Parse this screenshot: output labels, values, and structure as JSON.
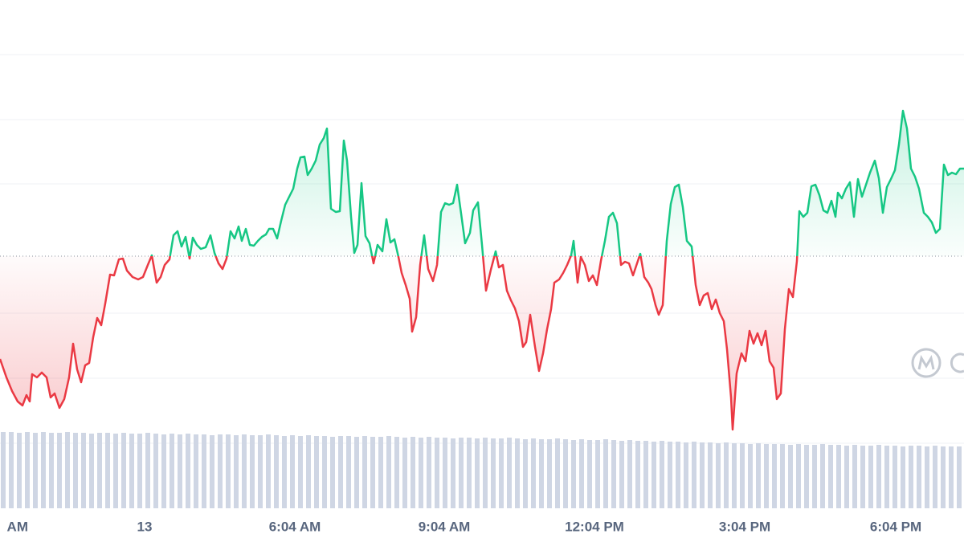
{
  "chart_data": {
    "type": "line",
    "xlim": [
      0,
      1200
    ],
    "ylim": [
      0,
      675
    ],
    "grid": true,
    "yticks": [
      123,
      204,
      285,
      446,
      526,
      607
    ],
    "xticks": [
      {
        "value": -7,
        "label": "AM"
      },
      {
        "value": 180,
        "label": "13"
      },
      {
        "value": 367,
        "label": "6:04 AM"
      },
      {
        "value": 553,
        "label": "9:04 AM"
      },
      {
        "value": 740,
        "label": "12:04 PM"
      },
      {
        "value": 927,
        "label": "3:04 PM"
      },
      {
        "value": 1115,
        "label": "6:04 PM"
      }
    ],
    "baseline": 356,
    "up_color": "#16c784",
    "down_color": "#ea3943",
    "x": [
      0,
      8,
      15,
      22,
      28,
      33,
      37,
      40,
      46,
      52,
      58,
      63,
      68,
      74,
      80,
      86,
      91,
      96,
      101,
      106,
      111,
      116,
      121,
      126,
      131,
      137,
      142,
      148,
      153,
      158,
      165,
      172,
      178,
      184,
      189,
      195,
      200,
      205,
      211,
      216,
      221,
      226,
      231,
      236,
      240,
      245,
      250,
      256,
      262,
      267,
      272,
      277,
      282,
      287,
      292,
      297,
      301,
      306,
      311,
      316,
      321,
      326,
      331,
      335,
      340,
      345,
      350,
      355,
      360,
      365,
      370,
      374,
      379,
      383,
      388,
      393,
      398,
      403,
      407,
      412,
      418,
      423,
      428,
      432,
      437,
      441,
      445,
      450,
      455,
      460,
      465,
      470,
      476,
      481,
      486,
      491,
      496,
      500,
      505,
      510,
      513,
      518,
      523,
      528,
      533,
      539,
      544,
      549,
      554,
      559,
      564,
      569,
      574,
      579,
      585,
      589,
      595,
      600,
      605,
      611,
      617,
      621,
      626,
      631,
      636,
      641,
      646,
      651,
      655,
      660,
      666,
      671,
      676,
      681,
      686,
      690,
      696,
      701,
      706,
      711,
      714,
      719,
      723,
      728,
      733,
      738,
      743,
      748,
      753,
      758,
      763,
      768,
      773,
      778,
      783,
      788,
      793,
      797,
      802,
      807,
      811,
      816,
      820,
      825,
      830,
      835,
      840,
      845,
      850,
      855,
      861,
      866,
      871,
      876,
      881,
      886,
      891,
      896,
      901,
      905,
      910,
      912,
      917,
      923,
      928,
      933,
      938,
      943,
      948,
      953,
      958,
      963,
      967,
      972,
      977,
      982,
      987,
      992,
      995,
      1000,
      1005,
      1010,
      1015,
      1020,
      1025,
      1030,
      1035,
      1040,
      1043,
      1048,
      1053,
      1058,
      1063,
      1068,
      1073,
      1078,
      1083,
      1089,
      1094,
      1099,
      1104,
      1109,
      1114,
      1119,
      1124,
      1129,
      1134,
      1139,
      1144,
      1150,
      1155,
      1160,
      1165,
      1170,
      1175,
      1180,
      1185,
      1190,
      1195,
      1200
    ],
    "values": [
      228,
      205,
      188,
      175,
      170,
      183,
      175,
      209,
      205,
      211,
      205,
      180,
      185,
      167,
      178,
      205,
      247,
      215,
      199,
      220,
      223,
      255,
      279,
      270,
      297,
      333,
      332,
      352,
      353,
      338,
      330,
      327,
      330,
      345,
      357,
      323,
      330,
      345,
      352,
      382,
      387,
      368,
      380,
      353,
      379,
      370,
      365,
      367,
      382,
      360,
      347,
      340,
      353,
      387,
      378,
      393,
      375,
      390,
      370,
      369,
      375,
      380,
      383,
      390,
      390,
      378,
      400,
      420,
      430,
      440,
      465,
      479,
      480,
      457,
      465,
      475,
      495,
      503,
      515,
      415,
      411,
      412,
      500,
      475,
      405,
      360,
      370,
      447,
      381,
      372,
      347,
      370,
      362,
      402,
      373,
      377,
      355,
      335,
      320,
      303,
      262,
      280,
      345,
      382,
      340,
      325,
      345,
      411,
      422,
      420,
      422,
      445,
      409,
      372,
      385,
      413,
      423,
      370,
      313,
      339,
      362,
      342,
      345,
      313,
      301,
      291,
      275,
      243,
      249,
      283,
      243,
      213,
      235,
      265,
      290,
      323,
      327,
      335,
      345,
      357,
      375,
      323,
      355,
      345,
      325,
      332,
      320,
      350,
      375,
      405,
      410,
      397,
      345,
      349,
      347,
      332,
      347,
      359,
      330,
      323,
      315,
      295,
      283,
      295,
      375,
      421,
      442,
      445,
      417,
      375,
      368,
      320,
      295,
      307,
      310,
      290,
      302,
      285,
      275,
      240,
      180,
      140,
      210,
      235,
      225,
      263,
      247,
      260,
      245,
      263,
      225,
      217,
      178,
      185,
      265,
      315,
      305,
      350,
      412,
      405,
      410,
      443,
      445,
      432,
      413,
      410,
      425,
      405,
      435,
      428,
      440,
      448,
      405,
      452,
      430,
      445,
      460,
      475,
      453,
      410,
      442,
      452,
      463,
      495,
      537,
      515,
      465,
      455,
      440,
      410,
      405,
      398,
      385,
      390,
      470,
      457,
      460,
      458,
      465,
      465
    ],
    "volume": {
      "color": "#cfd6e4",
      "ylim": [
        0,
        100
      ],
      "values": [
        95,
        95,
        94,
        95,
        94,
        95,
        94,
        94,
        95,
        94,
        94,
        93,
        94,
        94,
        93,
        94,
        93,
        93,
        94,
        93,
        92,
        93,
        92,
        93,
        92,
        92,
        91,
        92,
        92,
        91,
        92,
        91,
        91,
        92,
        91,
        90,
        91,
        90,
        91,
        90,
        90,
        89,
        90,
        90,
        89,
        90,
        89,
        89,
        90,
        89,
        88,
        89,
        88,
        89,
        88,
        88,
        87,
        88,
        88,
        87,
        88,
        87,
        87,
        88,
        87,
        86,
        87,
        86,
        86,
        87,
        86,
        85,
        86,
        85,
        85,
        86,
        85,
        84,
        85,
        84,
        84,
        83,
        84,
        83,
        83,
        82,
        83,
        82,
        82,
        81,
        82,
        81,
        81,
        80,
        81,
        80,
        80,
        80,
        79,
        80,
        79,
        79,
        80,
        79,
        79,
        78,
        79,
        78,
        78,
        79,
        78,
        78,
        77,
        78,
        78,
        77,
        78,
        77,
        77,
        77
      ]
    }
  }
}
